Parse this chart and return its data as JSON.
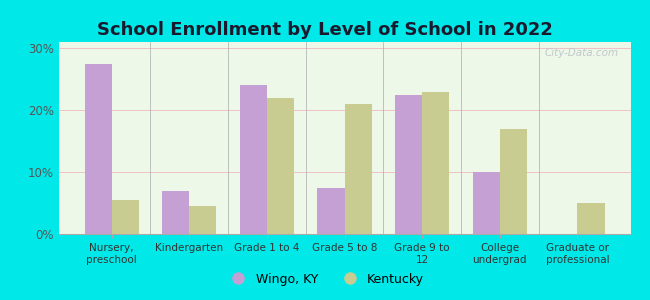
{
  "title": "School Enrollment by Level of School in 2022",
  "categories": [
    "Nursery,\npreschool",
    "Kindergarten",
    "Grade 1 to 4",
    "Grade 5 to 8",
    "Grade 9 to\n12",
    "College\nundergrad",
    "Graduate or\nprofessional"
  ],
  "wingo": [
    27.5,
    7.0,
    24.0,
    7.5,
    22.5,
    10.0,
    0.0
  ],
  "kentucky": [
    5.5,
    4.5,
    22.0,
    21.0,
    23.0,
    17.0,
    5.0
  ],
  "wingo_color": "#c4a0d4",
  "kentucky_color": "#c8cc90",
  "background_outer": "#00e8e8",
  "background_inner": "#eef8e8",
  "title_fontsize": 13,
  "ylabel_ticks": [
    0,
    10,
    20,
    30
  ],
  "ylim": [
    0,
    31
  ],
  "legend_wingo": "Wingo, KY",
  "legend_kentucky": "Kentucky",
  "watermark": "City-Data.com"
}
